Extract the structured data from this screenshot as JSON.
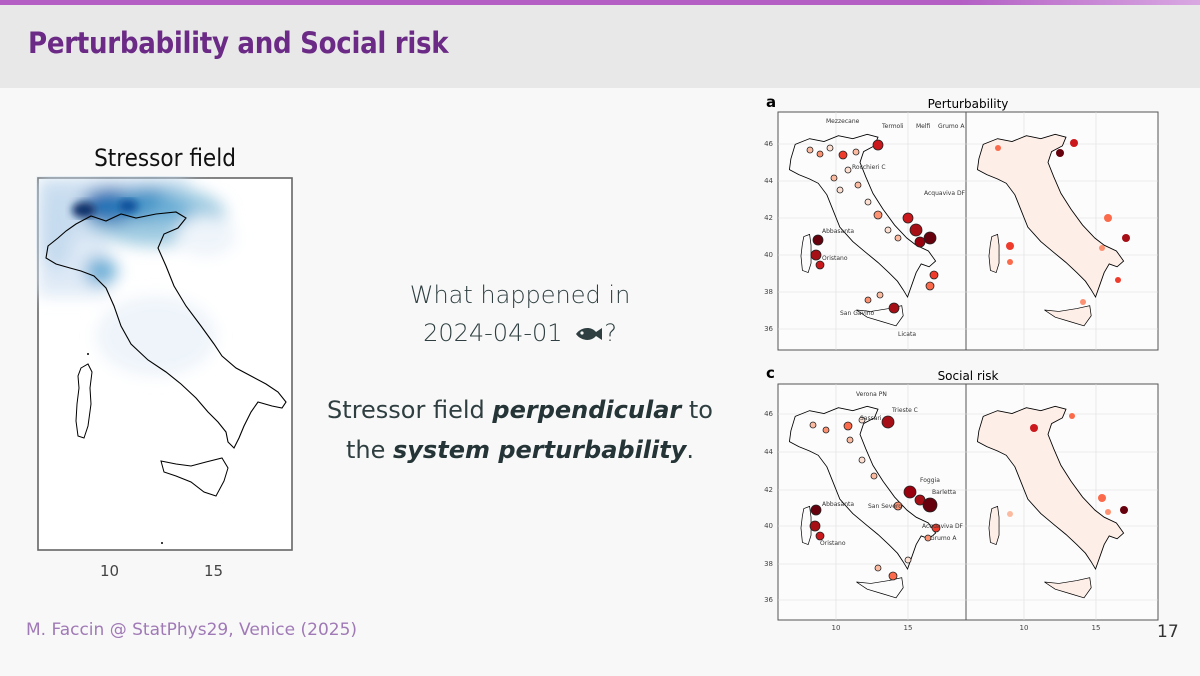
{
  "slide": {
    "title": "Perturbability and Social risk",
    "page_number": "17",
    "footer": "M. Faccin @ StatPhys29, Venice (2025)"
  },
  "stressor_panel": {
    "title": "Stressor field",
    "x_ticks": [
      "10",
      "15"
    ]
  },
  "center_text": {
    "question_line1": "What happened in",
    "question_line2_date": "2024-04-01",
    "question_line2_end": "?",
    "fish_icon": "fish-icon",
    "statement_1": "Stressor field ",
    "statement_emph1": "perpendicular",
    "statement_2": " to",
    "statement_3": "the ",
    "statement_emph2": "system perturbability",
    "statement_4": "."
  },
  "figure_a": {
    "panel_label": "a",
    "title": "Perturbability",
    "y_ticks": [
      "46",
      "44",
      "42",
      "40",
      "38",
      "36"
    ],
    "city_labels": [
      "Mezzecane",
      "Termoli",
      "Melfi",
      "Grumo A",
      "Rocchieri C",
      "Acquaviva DF",
      "Abbasanta",
      "Oristano",
      "San Gavino",
      "Licata"
    ]
  },
  "figure_c": {
    "panel_label": "c",
    "title": "Social risk",
    "y_ticks": [
      "46",
      "44",
      "42",
      "40",
      "38",
      "36"
    ],
    "x_ticks": [
      "10",
      "15",
      "10",
      "15"
    ],
    "city_labels": [
      "Verona PN",
      "Trieste C",
      "Sassari",
      "Foggia",
      "Barletta",
      "Abbasanta",
      "San Severo",
      "Acquaviva DF",
      "Grumo A",
      "Oristano"
    ]
  },
  "colors": {
    "title": "#6b2a86",
    "accent_bar": "#b35fc4",
    "footer": "#a07ab6",
    "stressor_blue": "#08306b",
    "risk_red": "#67000d"
  }
}
